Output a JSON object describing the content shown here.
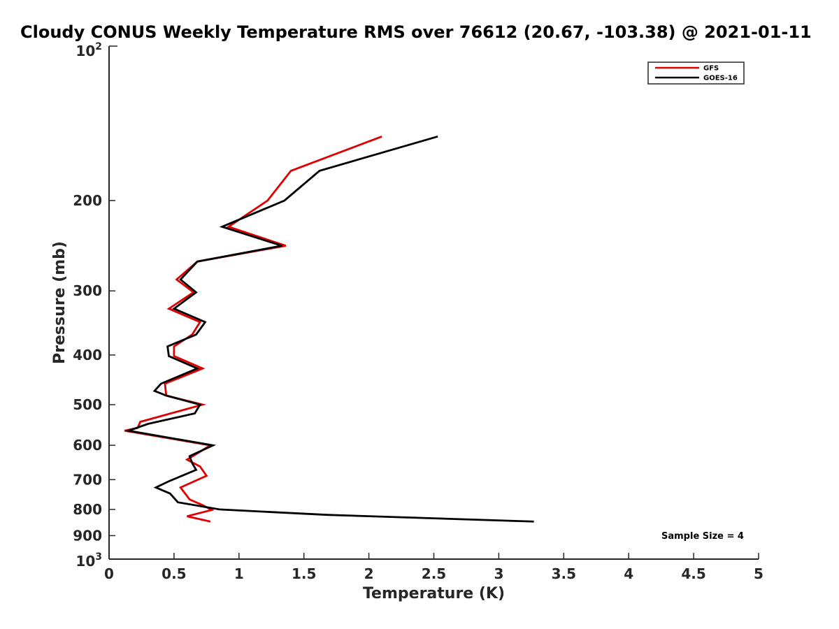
{
  "chart_data": {
    "type": "line",
    "title": "Cloudy CONUS Weekly Temperature RMS over 76612 (20.67, -103.38) @ 2021-01-11",
    "xlabel": "Temperature (K)",
    "ylabel": "Pressure (mb)",
    "xlim": [
      0,
      5
    ],
    "ylim": [
      100,
      1000
    ],
    "yscale": "log",
    "y_reversed": true,
    "grid": false,
    "legend_position": "top-right",
    "x_ticks": [
      "0",
      "0.5",
      "1",
      "1.5",
      "2",
      "2.5",
      "3",
      "3.5",
      "4",
      "4.5",
      "5"
    ],
    "y_ticks": [
      "200",
      "300",
      "400",
      "500",
      "600",
      "700",
      "800",
      "900"
    ],
    "y_ticks_values": [
      200,
      300,
      400,
      500,
      600,
      700,
      800,
      900
    ],
    "y_end_labels": {
      "top": {
        "base": "10",
        "exp": "2"
      },
      "bottom": {
        "base": "10",
        "exp": "3"
      }
    },
    "annotation": "Sample Size = 4",
    "series": [
      {
        "name": "GFS",
        "color": "#e00000",
        "points": [
          [
            2.1,
            150
          ],
          [
            1.4,
            175
          ],
          [
            1.22,
            200
          ],
          [
            0.92,
            225
          ],
          [
            1.36,
            245
          ],
          [
            0.68,
            263
          ],
          [
            0.52,
            285
          ],
          [
            0.65,
            302
          ],
          [
            0.46,
            325
          ],
          [
            0.7,
            345
          ],
          [
            0.64,
            365
          ],
          [
            0.5,
            385
          ],
          [
            0.5,
            402
          ],
          [
            0.72,
            425
          ],
          [
            0.43,
            455
          ],
          [
            0.44,
            480
          ],
          [
            0.72,
            500
          ],
          [
            0.24,
            540
          ],
          [
            0.22,
            555
          ],
          [
            0.12,
            562
          ],
          [
            0.78,
            600
          ],
          [
            0.6,
            640
          ],
          [
            0.7,
            660
          ],
          [
            0.75,
            688
          ],
          [
            0.55,
            725
          ],
          [
            0.62,
            765
          ],
          [
            0.72,
            785
          ],
          [
            0.79,
            802
          ],
          [
            0.6,
            825
          ],
          [
            0.78,
            845
          ]
        ]
      },
      {
        "name": "GOES-16",
        "color": "#000000",
        "points": [
          [
            2.53,
            150
          ],
          [
            1.62,
            175
          ],
          [
            1.35,
            200
          ],
          [
            0.87,
            225
          ],
          [
            1.33,
            245
          ],
          [
            0.68,
            263
          ],
          [
            0.55,
            285
          ],
          [
            0.67,
            302
          ],
          [
            0.5,
            325
          ],
          [
            0.74,
            345
          ],
          [
            0.67,
            365
          ],
          [
            0.45,
            385
          ],
          [
            0.46,
            402
          ],
          [
            0.68,
            425
          ],
          [
            0.4,
            455
          ],
          [
            0.35,
            470
          ],
          [
            0.44,
            480
          ],
          [
            0.7,
            500
          ],
          [
            0.66,
            520
          ],
          [
            0.3,
            545
          ],
          [
            0.15,
            562
          ],
          [
            0.8,
            600
          ],
          [
            0.62,
            630
          ],
          [
            0.64,
            650
          ],
          [
            0.67,
            670
          ],
          [
            0.46,
            705
          ],
          [
            0.36,
            725
          ],
          [
            0.47,
            745
          ],
          [
            0.53,
            775
          ],
          [
            0.85,
            800
          ],
          [
            1.68,
            820
          ],
          [
            3.27,
            845
          ]
        ]
      }
    ]
  }
}
